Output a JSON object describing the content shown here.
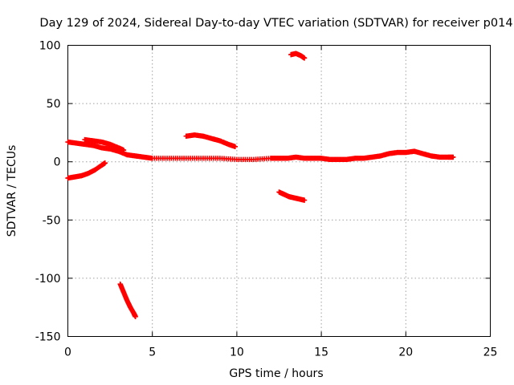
{
  "chart_data": {
    "type": "scatter",
    "title": "Day 129 of 2024, Sidereal Day-to-day VTEC variation (SDTVAR) for receiver p014",
    "xlabel": "GPS time / hours",
    "ylabel": "SDTVAR / TECUs",
    "xlim": [
      0,
      25
    ],
    "ylim": [
      -150,
      100
    ],
    "xticks": [
      0,
      5,
      10,
      15,
      20,
      25
    ],
    "yticks": [
      -150,
      -100,
      -50,
      0,
      50,
      100
    ],
    "xtick_labels": [
      "0",
      "5",
      "10",
      "15",
      "20",
      "25"
    ],
    "ytick_labels": [
      "-150",
      "-100",
      "-50",
      "0",
      "50",
      "100"
    ],
    "grid": true,
    "marker": "plus",
    "color": "#ff0000",
    "series": [
      {
        "name": "main-arc",
        "points": [
          [
            0,
            17
          ],
          [
            0.5,
            16
          ],
          [
            1,
            15
          ],
          [
            1.5,
            14
          ],
          [
            2,
            12
          ],
          [
            2.5,
            11
          ],
          [
            3,
            9
          ],
          [
            3.5,
            6
          ],
          [
            4,
            5
          ],
          [
            4.5,
            4
          ],
          [
            5,
            3
          ],
          [
            6,
            3
          ],
          [
            7,
            3
          ],
          [
            8,
            3
          ],
          [
            9,
            3
          ],
          [
            10,
            2
          ],
          [
            11,
            2
          ],
          [
            12,
            3
          ],
          [
            12.5,
            3
          ],
          [
            13,
            3
          ],
          [
            13.5,
            4
          ],
          [
            14,
            3
          ],
          [
            14.5,
            3
          ],
          [
            15,
            3
          ],
          [
            15.5,
            2
          ],
          [
            16,
            2
          ],
          [
            16.5,
            2
          ],
          [
            17,
            3
          ],
          [
            17.5,
            3
          ],
          [
            18,
            4
          ],
          [
            18.5,
            5
          ],
          [
            19,
            7
          ],
          [
            19.5,
            8
          ],
          [
            20,
            8
          ],
          [
            20.5,
            9
          ],
          [
            21,
            7
          ],
          [
            21.5,
            5
          ],
          [
            22,
            4
          ],
          [
            22.5,
            4
          ],
          [
            22.8,
            4
          ]
        ]
      },
      {
        "name": "arc-a",
        "points": [
          [
            1,
            19
          ],
          [
            1.5,
            18
          ],
          [
            2,
            17
          ],
          [
            2.5,
            15
          ],
          [
            3,
            12
          ],
          [
            3.3,
            10
          ]
        ]
      },
      {
        "name": "arc-b",
        "points": [
          [
            0,
            -14
          ],
          [
            0.4,
            -13
          ],
          [
            0.8,
            -12
          ],
          [
            1.2,
            -10
          ],
          [
            1.6,
            -7
          ],
          [
            2.0,
            -3
          ],
          [
            2.2,
            -1
          ]
        ]
      },
      {
        "name": "arc-c",
        "points": [
          [
            3.1,
            -105
          ],
          [
            3.3,
            -112
          ],
          [
            3.5,
            -119
          ],
          [
            3.7,
            -125
          ],
          [
            3.9,
            -130
          ],
          [
            4.0,
            -133
          ]
        ]
      },
      {
        "name": "arc-d",
        "points": [
          [
            7.0,
            22
          ],
          [
            7.5,
            23
          ],
          [
            8.0,
            22
          ],
          [
            8.5,
            20
          ],
          [
            9.0,
            18
          ],
          [
            9.5,
            15
          ],
          [
            9.9,
            13
          ]
        ]
      },
      {
        "name": "arc-e",
        "points": [
          [
            13.2,
            92
          ],
          [
            13.5,
            93
          ],
          [
            13.8,
            91
          ],
          [
            14.0,
            89
          ]
        ]
      },
      {
        "name": "arc-f",
        "points": [
          [
            12.5,
            -26
          ],
          [
            12.8,
            -28
          ],
          [
            13.1,
            -30
          ],
          [
            13.4,
            -31
          ],
          [
            13.7,
            -32
          ],
          [
            14.0,
            -33
          ]
        ]
      }
    ]
  }
}
